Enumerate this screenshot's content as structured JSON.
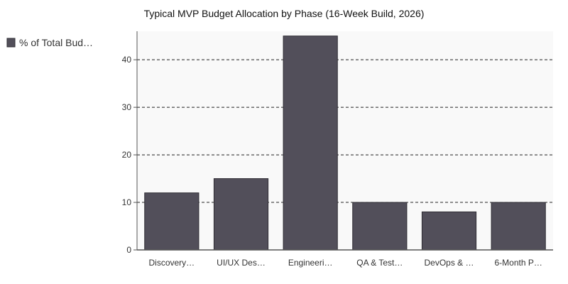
{
  "colors": {
    "bar": "#524f5a",
    "bar_stroke": "#2e2c33",
    "plot_bg": "#f9f9f9",
    "axis": "#555555",
    "grid": "#222222"
  },
  "chart_data": {
    "type": "bar",
    "title": "Typical MVP Budget Allocation by Phase (16-Week Build, 2026)",
    "xlabel": "",
    "ylabel": "",
    "categories": [
      "Discovery…",
      "UI/UX Des…",
      "Engineeri…",
      "QA & Test…",
      "DevOps & …",
      "6-Month P…"
    ],
    "series": [
      {
        "name": "% of Total Bud…",
        "values": [
          12,
          15,
          45,
          10,
          8,
          10
        ]
      }
    ],
    "ylim": [
      0,
      46
    ],
    "yticks": [
      0,
      10,
      20,
      30,
      40
    ],
    "grid": "horizontal dashed",
    "legend": "top-left"
  }
}
